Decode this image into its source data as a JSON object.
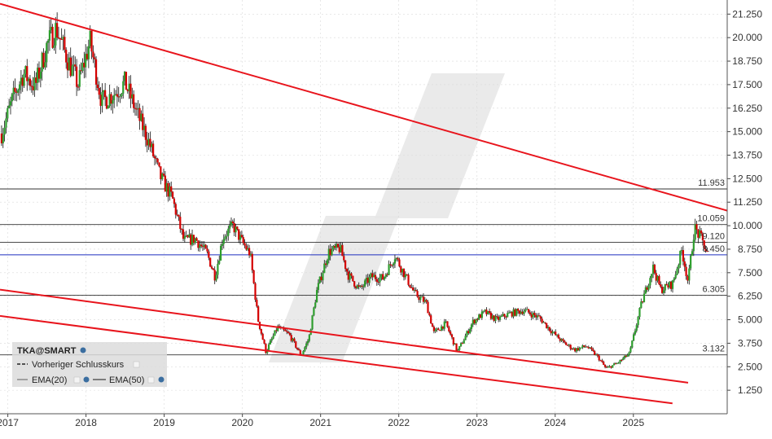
{
  "chart_data": {
    "type": "candlestick",
    "instrument": "TKA@SMART",
    "x_range": [
      2016.9,
      2026.2
    ],
    "y_range": [
      0.0,
      22.0
    ],
    "y_ticks": [
      "21.250",
      "20.000",
      "18.750",
      "17.500",
      "16.250",
      "15.000",
      "13.750",
      "12.500",
      "11.250",
      "10.000",
      "8.750",
      "7.500",
      "6.250",
      "5.000",
      "3.750",
      "2.500",
      "1.250"
    ],
    "x_ticks": [
      "2017",
      "2018",
      "2019",
      "2020",
      "2021",
      "2022",
      "2023",
      "2024",
      "2025"
    ],
    "horizontal_levels": [
      {
        "value": 11.953,
        "label": "11.953",
        "color": "#333333"
      },
      {
        "value": 10.059,
        "label": "10.059",
        "color": "#333333"
      },
      {
        "value": 9.12,
        "label": "9.120",
        "color": "#333333"
      },
      {
        "value": 8.45,
        "label": "8.450",
        "color": "#1f2fbf"
      },
      {
        "value": 6.305,
        "label": "6.305",
        "color": "#333333"
      },
      {
        "value": 3.132,
        "label": "3.132",
        "color": "#333333"
      }
    ],
    "trend_lines": [
      {
        "from": [
          2016.9,
          21.8
        ],
        "to": [
          2026.2,
          10.8
        ]
      },
      {
        "from": [
          2016.9,
          6.6
        ],
        "to": [
          2025.7,
          1.65
        ]
      },
      {
        "from": [
          2016.9,
          5.2
        ],
        "to": [
          2025.5,
          0.55
        ]
      }
    ],
    "price_path": [
      [
        2016.92,
        14.9
      ],
      [
        2017.05,
        16.6
      ],
      [
        2017.2,
        18.1
      ],
      [
        2017.35,
        17.4
      ],
      [
        2017.5,
        19.6
      ],
      [
        2017.62,
        20.5
      ],
      [
        2017.75,
        19.0
      ],
      [
        2017.9,
        17.5
      ],
      [
        2018.05,
        19.8
      ],
      [
        2018.2,
        16.6
      ],
      [
        2018.35,
        17.0
      ],
      [
        2018.5,
        17.6
      ],
      [
        2018.65,
        16.0
      ],
      [
        2018.8,
        14.5
      ],
      [
        2018.95,
        12.6
      ],
      [
        2019.1,
        11.5
      ],
      [
        2019.25,
        9.2
      ],
      [
        2019.4,
        9.3
      ],
      [
        2019.55,
        8.5
      ],
      [
        2019.65,
        7.3
      ],
      [
        2019.75,
        9.4
      ],
      [
        2019.88,
        10.0
      ],
      [
        2020.0,
        9.1
      ],
      [
        2020.1,
        8.5
      ],
      [
        2020.2,
        5.0
      ],
      [
        2020.3,
        3.3
      ],
      [
        2020.45,
        4.6
      ],
      [
        2020.6,
        4.2
      ],
      [
        2020.75,
        3.1
      ],
      [
        2020.85,
        4.0
      ],
      [
        2020.95,
        6.5
      ],
      [
        2021.1,
        8.6
      ],
      [
        2021.25,
        8.8
      ],
      [
        2021.35,
        7.4
      ],
      [
        2021.5,
        6.6
      ],
      [
        2021.65,
        7.3
      ],
      [
        2021.8,
        7.2
      ],
      [
        2021.95,
        8.4
      ],
      [
        2022.05,
        7.6
      ],
      [
        2022.2,
        6.4
      ],
      [
        2022.35,
        5.9
      ],
      [
        2022.45,
        4.3
      ],
      [
        2022.6,
        4.8
      ],
      [
        2022.75,
        3.3
      ],
      [
        2022.95,
        4.9
      ],
      [
        2023.1,
        5.4
      ],
      [
        2023.25,
        5.0
      ],
      [
        2023.4,
        5.3
      ],
      [
        2023.6,
        5.5
      ],
      [
        2023.8,
        5.1
      ],
      [
        2023.95,
        4.4
      ],
      [
        2024.1,
        3.8
      ],
      [
        2024.25,
        3.4
      ],
      [
        2024.4,
        3.6
      ],
      [
        2024.55,
        3.0
      ],
      [
        2024.65,
        2.4
      ],
      [
        2024.8,
        2.7
      ],
      [
        2024.95,
        3.2
      ],
      [
        2025.1,
        5.8
      ],
      [
        2025.25,
        7.8
      ],
      [
        2025.35,
        6.6
      ],
      [
        2025.5,
        6.9
      ],
      [
        2025.62,
        8.7
      ],
      [
        2025.7,
        7.0
      ],
      [
        2025.78,
        9.9
      ],
      [
        2025.88,
        9.2
      ],
      [
        2025.95,
        8.45
      ]
    ]
  },
  "legend": {
    "title": "TKA@SMART",
    "entries": [
      "Vorheriger Schlusskurs",
      "EMA(20)",
      "EMA(50)"
    ]
  },
  "colors": {
    "candle_up": "#2e9e2e",
    "candle_down": "#d40000",
    "wick": "#111111",
    "trendline": "#e8141c",
    "watermark": "#e6e6e6"
  }
}
